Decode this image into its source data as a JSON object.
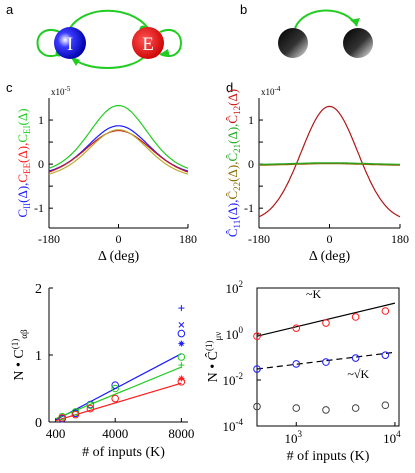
{
  "panels": {
    "a": {
      "letter": "a",
      "node_i_label": "I",
      "node_e_label": "E",
      "colors": {
        "i": "#1a1aff",
        "e": "#ff1a1a",
        "edge": "#22cc22"
      }
    },
    "b": {
      "letter": "b"
    },
    "c": {
      "letter": "c"
    },
    "d": {
      "letter": "d"
    }
  },
  "chart_data": [
    {
      "id": "c",
      "type": "line",
      "exponent_label": "x10",
      "exponent_power": "-5",
      "ylabel_parts": [
        {
          "text": "C",
          "sub": "II",
          "after": "(Δ),",
          "color": "#1a1aff"
        },
        {
          "text": "C",
          "sub": "EE",
          "after": "(Δ),",
          "color": "#ff1a1a"
        },
        {
          "text": "C",
          "sub": "EI",
          "after": "(Δ)",
          "color": "#22cc22"
        }
      ],
      "xlabel": "Δ (deg)",
      "xticks": [
        "-180",
        "0",
        "180"
      ],
      "yticks": [
        "1",
        "0.5",
        "0",
        "-0.5",
        "-1"
      ],
      "xlim": [
        -180,
        180
      ],
      "ylim": [
        -1.45,
        1.5
      ],
      "series": [
        {
          "name": "C_EI",
          "color": "#22cc22",
          "offset": 0.02,
          "amp": 1.31,
          "sigma": 70
        },
        {
          "name": "C_II",
          "color": "#1a1aff",
          "offset": -0.06,
          "amp": 0.93,
          "sigma": 72
        },
        {
          "name": "C_EE",
          "color": "#cc1a1a",
          "offset": -0.1,
          "amp": 0.86,
          "sigma": 78
        },
        {
          "name": "C_mid",
          "color": "#bbaa33",
          "offset": -0.12,
          "amp": 0.9,
          "sigma": 70
        }
      ]
    },
    {
      "id": "d",
      "type": "line",
      "exponent_label": "x10",
      "exponent_power": "-4",
      "ylabel_parts": [
        {
          "text": "Ĉ",
          "sub": "11",
          "after": "(Δ),",
          "color": "#1a1aff"
        },
        {
          "text": "Ĉ",
          "sub": "22",
          "after": "(Δ),",
          "color": "#8a6a00"
        },
        {
          "text": "Ĉ",
          "sub": "21",
          "after": "(Δ),",
          "color": "#22aa22"
        },
        {
          "text": "Ĉ",
          "sub": "12",
          "after": "(Δ)",
          "color": "#cc1a1a"
        }
      ],
      "xlabel": "Δ (deg)",
      "xticks": [
        "-180",
        "0",
        "180"
      ],
      "yticks": [
        "1",
        "0.5",
        "0",
        "-0.5",
        "-1"
      ],
      "xlim": [
        -180,
        180
      ],
      "ylim": [
        -1.45,
        1.5
      ],
      "series": [
        {
          "name": "C12",
          "color": "#b01818",
          "offset": -1.31,
          "amp": 2.62,
          "sigma": 72
        },
        {
          "name": "C11",
          "color": "#1a1aff",
          "offset": -0.02,
          "amp": 0.04,
          "sigma": 90
        },
        {
          "name": "C22",
          "color": "#8a6a00",
          "offset": -0.03,
          "amp": 0.04,
          "sigma": 90
        },
        {
          "name": "C21",
          "color": "#22aa22",
          "offset": -0.01,
          "amp": 0.04,
          "sigma": 90
        }
      ]
    },
    {
      "id": "e",
      "type": "scatter",
      "ylabel_main": "N • C",
      "ylabel_sup": "(1)",
      "ylabel_sub": "αβ",
      "xlabel": "# of inputs (K)",
      "xticks": [
        "400",
        "4000",
        "8000"
      ],
      "xtick_values": [
        400,
        4000,
        8000
      ],
      "yticks": [
        "2",
        "1",
        "0"
      ],
      "ytick_values": [
        2,
        1,
        0
      ],
      "xlim": [
        0,
        8400
      ],
      "ylim": [
        0,
        2
      ],
      "lines": [
        {
          "color": "#1a1aff",
          "x": [
            400,
            8000
          ],
          "y": [
            0.03,
            1.02
          ]
        },
        {
          "color": "#22cc22",
          "x": [
            400,
            8000
          ],
          "y": [
            0.05,
            0.82
          ]
        },
        {
          "color": "#ff1a1a",
          "x": [
            400,
            8000
          ],
          "y": [
            0.02,
            0.58
          ]
        }
      ],
      "points": [
        {
          "x": 800,
          "y": 0.05,
          "color": "#1a1aff",
          "m": "o"
        },
        {
          "x": 1600,
          "y": 0.13,
          "color": "#1a1aff",
          "m": "o"
        },
        {
          "x": 2500,
          "y": 0.26,
          "color": "#1a1aff",
          "m": "o"
        },
        {
          "x": 4000,
          "y": 0.55,
          "color": "#1a1aff",
          "m": "o"
        },
        {
          "x": 8000,
          "y": 1.32,
          "color": "#1a1aff",
          "m": "o"
        },
        {
          "x": 8000,
          "y": 1.7,
          "color": "#1a1aff",
          "m": "+"
        },
        {
          "x": 8000,
          "y": 1.45,
          "color": "#1a1aff",
          "m": "x"
        },
        {
          "x": 8000,
          "y": 1.17,
          "color": "#1a1aff",
          "m": "*"
        },
        {
          "x": 800,
          "y": 0.08,
          "color": "#22cc22",
          "m": "o"
        },
        {
          "x": 1600,
          "y": 0.15,
          "color": "#22cc22",
          "m": "o"
        },
        {
          "x": 2500,
          "y": 0.25,
          "color": "#22cc22",
          "m": "o"
        },
        {
          "x": 4000,
          "y": 0.5,
          "color": "#22cc22",
          "m": "o"
        },
        {
          "x": 8000,
          "y": 0.97,
          "color": "#22cc22",
          "m": "o"
        },
        {
          "x": 8000,
          "y": 0.85,
          "color": "#22cc22",
          "m": "+"
        },
        {
          "x": 800,
          "y": 0.06,
          "color": "#ff1a1a",
          "m": "o"
        },
        {
          "x": 1600,
          "y": 0.11,
          "color": "#ff1a1a",
          "m": "o"
        },
        {
          "x": 2500,
          "y": 0.2,
          "color": "#ff1a1a",
          "m": "o"
        },
        {
          "x": 4000,
          "y": 0.35,
          "color": "#ff1a1a",
          "m": "o"
        },
        {
          "x": 8000,
          "y": 0.6,
          "color": "#ff1a1a",
          "m": "o"
        },
        {
          "x": 8000,
          "y": 0.65,
          "color": "#ff1a1a",
          "m": "*"
        }
      ]
    },
    {
      "id": "f",
      "type": "scatter",
      "yscale": "log",
      "xscale": "log",
      "ylabel_main": "N • Ĉ",
      "ylabel_sup": "(1)",
      "ylabel_sub": "μν",
      "xlabel": "# of inputs (K)",
      "xticks_base": [
        "10",
        "10"
      ],
      "xticks_exp": [
        "3",
        "4"
      ],
      "xtick_values": [
        1000,
        10000
      ],
      "yticks_base": [
        "10",
        "10",
        "10",
        "10"
      ],
      "yticks_exp": [
        "2",
        "0",
        "-2",
        "-4"
      ],
      "ytick_values": [
        100,
        1,
        0.01,
        0.0001
      ],
      "xlim": [
        400,
        11000
      ],
      "ylim": [
        0.0001,
        100
      ],
      "annotation_k": "~K",
      "annotation_sqrtk": "~√K",
      "lines": [
        {
          "color": "#000000",
          "dash": false,
          "x": [
            400,
            10000
          ],
          "y": [
            0.8,
            22
          ]
        },
        {
          "color": "#000000",
          "dash": true,
          "x": [
            400,
            10000
          ],
          "y": [
            0.03,
            0.16
          ]
        }
      ],
      "points": [
        {
          "x": 400,
          "y": 0.8,
          "color": "#ff1a1a"
        },
        {
          "x": 1000,
          "y": 1.8,
          "color": "#ff1a1a"
        },
        {
          "x": 2000,
          "y": 3.0,
          "color": "#ff1a1a"
        },
        {
          "x": 4000,
          "y": 5.5,
          "color": "#ff1a1a"
        },
        {
          "x": 8000,
          "y": 10.0,
          "color": "#ff1a1a"
        },
        {
          "x": 400,
          "y": 0.03,
          "color": "#1a1aff"
        },
        {
          "x": 1000,
          "y": 0.05,
          "color": "#1a1aff"
        },
        {
          "x": 2000,
          "y": 0.06,
          "color": "#1a1aff"
        },
        {
          "x": 4000,
          "y": 0.09,
          "color": "#1a1aff"
        },
        {
          "x": 8000,
          "y": 0.12,
          "color": "#1a1aff"
        },
        {
          "x": 400,
          "y": 0.0007,
          "color": "#444444"
        },
        {
          "x": 1000,
          "y": 0.0006,
          "color": "#444444"
        },
        {
          "x": 2000,
          "y": 0.0005,
          "color": "#444444"
        },
        {
          "x": 4000,
          "y": 0.0006,
          "color": "#444444"
        },
        {
          "x": 8000,
          "y": 0.0008,
          "color": "#444444"
        }
      ]
    }
  ]
}
